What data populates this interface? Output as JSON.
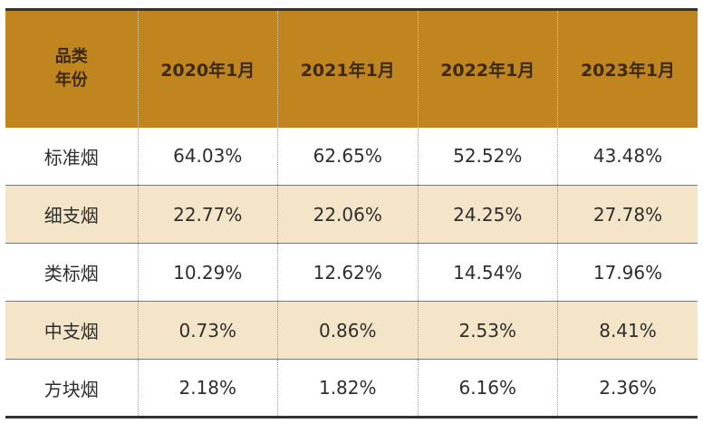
{
  "chart_data": {
    "type": "table",
    "corner_label_top": "品类",
    "corner_label_bottom": "年份",
    "columns": [
      "2020年1月",
      "2021年1月",
      "2022年1月",
      "2023年1月"
    ],
    "rows": [
      {
        "category": "标准烟",
        "values": [
          "64.03%",
          "62.65%",
          "52.52%",
          "43.48%"
        ]
      },
      {
        "category": "细支烟",
        "values": [
          "22.77%",
          "22.06%",
          "24.25%",
          "27.78%"
        ]
      },
      {
        "category": "类标烟",
        "values": [
          "10.29%",
          "12.62%",
          "14.54%",
          "17.96%"
        ]
      },
      {
        "category": "中支烟",
        "values": [
          "0.73%",
          "0.86%",
          "2.53%",
          "8.41%"
        ]
      },
      {
        "category": "方块烟",
        "values": [
          "2.18%",
          "1.82%",
          "6.16%",
          "2.36%"
        ]
      }
    ]
  },
  "colors": {
    "header_background": "#c0851e",
    "alternate_row_background": "#f4e4c8",
    "rule_color": "#333333"
  }
}
